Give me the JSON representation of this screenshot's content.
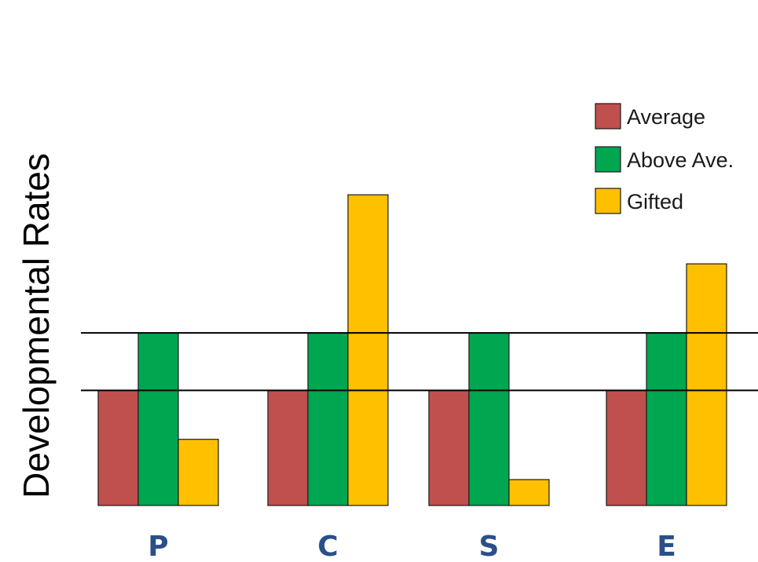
{
  "chart_data": {
    "type": "bar",
    "ylabel": "Developmental Rates",
    "xlabel": "",
    "categories": [
      "P",
      "C",
      "S",
      "E"
    ],
    "category_color": "#2a4f8a",
    "series": [
      {
        "name": "Average",
        "color": "#c0504d",
        "values": [
          2.0,
          2.0,
          2.0,
          2.0
        ]
      },
      {
        "name": "Above Ave.",
        "color": "#00a650",
        "values": [
          3.0,
          3.0,
          3.0,
          3.0
        ]
      },
      {
        "name": "Gifted",
        "color": "#ffc000",
        "values": [
          1.15,
          5.4,
          0.45,
          4.2
        ]
      }
    ],
    "reference_lines": [
      2.0,
      3.0
    ],
    "ylim": [
      0,
      6
    ],
    "legend_position": "top-right",
    "grid": false
  }
}
